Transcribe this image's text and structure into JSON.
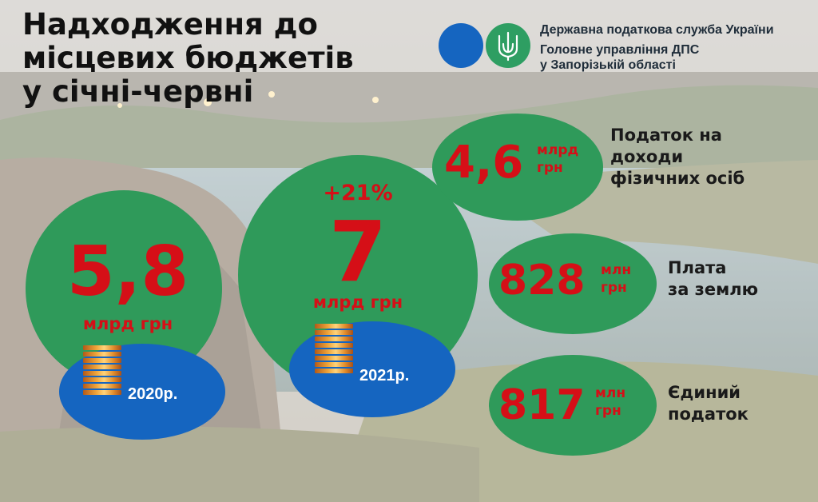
{
  "title": {
    "line1": "Надходження до",
    "line2": "місцевих бюджетів",
    "line3": "у січні-червні"
  },
  "header": {
    "org_line1": "Державна податкова служба України",
    "org_line2": "Головне управління ДПС",
    "org_line3": "у Запорізькій області",
    "logo_icon": "trident-icon",
    "colors": {
      "blue": "#1565c0",
      "green": "#2e9e62"
    }
  },
  "totals": [
    {
      "year": "2020р.",
      "value": "5,8",
      "unit": "млрд грн"
    },
    {
      "year": "2021р.",
      "value": "7",
      "unit": "млрд грн",
      "change": "+21%"
    }
  ],
  "breakdown": [
    {
      "value": "4,6",
      "unit_top": "млрд",
      "unit_bottom": "грн",
      "label_lines": [
        "Податок на",
        "доходи",
        "фізичних осіб"
      ]
    },
    {
      "value": "828",
      "unit_top": "млн",
      "unit_bottom": "грн",
      "label_lines": [
        "Плата",
        "за землю"
      ]
    },
    {
      "value": "817",
      "unit_top": "млн",
      "unit_bottom": "грн",
      "label_lines": [
        "Єдиний",
        "податок"
      ]
    }
  ],
  "colors": {
    "green": "#2f9a5a",
    "blue": "#1565c0",
    "red": "#d50f17"
  }
}
